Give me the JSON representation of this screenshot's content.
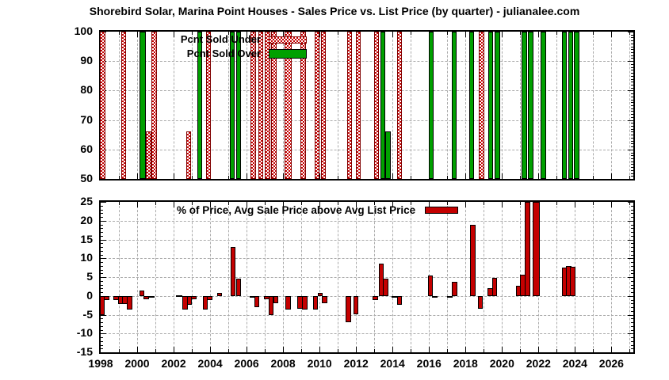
{
  "title": "Shorebird Solar, Marina Point Houses - Sales Price vs. List Price (by quarter) - julianalee.com",
  "palette": {
    "green": "#00A000",
    "red": "#C40000",
    "dark_red_border": "#800000",
    "grid": "#ABABAB",
    "axis": "#000000"
  },
  "point_format": "[year, value, optional_bar_width_in_years]",
  "chart_data": [
    {
      "type": "bar",
      "title": "",
      "x_range": [
        1998,
        2027.2
      ],
      "y_range": [
        50,
        100
      ],
      "y_ticks": [
        50,
        60,
        70,
        80,
        90,
        100
      ],
      "grid_y": [
        60,
        70,
        80,
        90
      ],
      "x_label_years": [
        1998,
        2000,
        2002,
        2004,
        2006,
        2008,
        2010,
        2012,
        2014,
        2016,
        2018,
        2020,
        2022,
        2024,
        2026
      ],
      "show_x_labels": false,
      "grid": true,
      "legend_position": "top-left-inside",
      "bar_base": 50,
      "series": [
        {
          "name": "Pcnt Sold Under",
          "style": "hatch-red",
          "points": [
            [
              1998.11,
              100
            ],
            [
              1999.25,
              100
            ],
            [
              2000.62,
              66
            ],
            [
              2000.94,
              100
            ],
            [
              2002.82,
              66
            ],
            [
              2003.92,
              100
            ],
            [
              2006.36,
              100
            ],
            [
              2006.77,
              100
            ],
            [
              2007.15,
              100
            ],
            [
              2007.5,
              100
            ],
            [
              2008.28,
              100,
              0.38
            ],
            [
              2009.1,
              100
            ],
            [
              2009.87,
              100
            ],
            [
              2010.22,
              100
            ],
            [
              2011.64,
              100
            ],
            [
              2012.12,
              100
            ],
            [
              2013.11,
              100
            ],
            [
              2014.39,
              100
            ],
            [
              2018.88,
              100
            ]
          ]
        },
        {
          "name": "Pcnt Sold Over",
          "style": "solid-green",
          "points": [
            [
              2000.29,
              100,
              0.35
            ],
            [
              2003.44,
              100
            ],
            [
              2005.21,
              100
            ],
            [
              2005.56,
              100
            ],
            [
              2013.46,
              100
            ],
            [
              2013.76,
              66
            ],
            [
              2016.13,
              100
            ],
            [
              2017.38,
              100
            ],
            [
              2018.33,
              100
            ],
            [
              2019.37,
              100
            ],
            [
              2019.74,
              100
            ],
            [
              2021.23,
              100
            ],
            [
              2021.58,
              100
            ],
            [
              2022.27,
              100
            ],
            [
              2023.42,
              100
            ],
            [
              2023.76,
              100
            ],
            [
              2024.1,
              100
            ]
          ]
        }
      ]
    },
    {
      "type": "bar",
      "title": "% of Price, Avg Sale Price above Avg List Price",
      "x_range": [
        1998,
        2027.2
      ],
      "y_range": [
        -15,
        25
      ],
      "y_ticks": [
        -15,
        -10,
        -5,
        0,
        5,
        10,
        15,
        20,
        25
      ],
      "grid_y": [
        -10,
        -5,
        0,
        5,
        10,
        15,
        20
      ],
      "x_label_years": [
        1998,
        2000,
        2002,
        2004,
        2006,
        2008,
        2010,
        2012,
        2014,
        2016,
        2018,
        2020,
        2022,
        2024,
        2026
      ],
      "show_x_labels": true,
      "grid": true,
      "legend_position": "top-center-inside",
      "bar_base": 0,
      "series": [
        {
          "name": "% of Price, Avg Sale Price above Avg List Price",
          "style": "solid-red",
          "points": [
            [
              1998.08,
              -5.0
            ],
            [
              1998.32,
              -1.0
            ],
            [
              1998.85,
              -1.1
            ],
            [
              1999.1,
              -2.1
            ],
            [
              1999.33,
              -2.2
            ],
            [
              1999.58,
              -3.7
            ],
            [
              2000.27,
              1.5
            ],
            [
              2000.5,
              -0.9
            ],
            [
              2000.78,
              -0.15,
              0.35
            ],
            [
              2002.3,
              0.2,
              0.35
            ],
            [
              2002.62,
              -3.7
            ],
            [
              2002.87,
              -2.3
            ],
            [
              2003.1,
              -0.9
            ],
            [
              2003.74,
              -3.6
            ],
            [
              2003.98,
              -1.2
            ],
            [
              2004.52,
              0.7
            ],
            [
              2005.25,
              13.0
            ],
            [
              2005.55,
              4.6
            ],
            [
              2006.3,
              -0.15,
              0.3
            ],
            [
              2006.55,
              -2.9
            ],
            [
              2007.1,
              -0.8
            ],
            [
              2007.35,
              -5.1
            ],
            [
              2007.6,
              -2.0
            ],
            [
              2008.28,
              -3.6
            ],
            [
              2008.93,
              -3.4
            ],
            [
              2009.18,
              -3.6
            ],
            [
              2009.78,
              -3.7
            ],
            [
              2010.03,
              0.8
            ],
            [
              2010.28,
              -2.0
            ],
            [
              2011.58,
              -7.1
            ],
            [
              2011.98,
              -4.9
            ],
            [
              2013.05,
              -1.0
            ],
            [
              2013.38,
              8.5
            ],
            [
              2013.63,
              4.6
            ],
            [
              2014.1,
              -0.3
            ],
            [
              2014.38,
              -2.3
            ],
            [
              2016.08,
              5.5
            ],
            [
              2016.32,
              -0.1
            ],
            [
              2017.15,
              -0.15
            ],
            [
              2017.4,
              3.7
            ],
            [
              2018.4,
              19.0
            ],
            [
              2018.82,
              -3.4
            ],
            [
              2019.35,
              2.0
            ],
            [
              2019.6,
              4.8
            ],
            [
              2020.9,
              2.7
            ],
            [
              2021.14,
              5.6
            ],
            [
              2021.39,
              25.0,
              0.3
            ],
            [
              2021.87,
              25.0,
              0.38
            ],
            [
              2023.45,
              7.5
            ],
            [
              2023.66,
              8.0
            ],
            [
              2023.87,
              7.8
            ]
          ]
        }
      ]
    }
  ]
}
